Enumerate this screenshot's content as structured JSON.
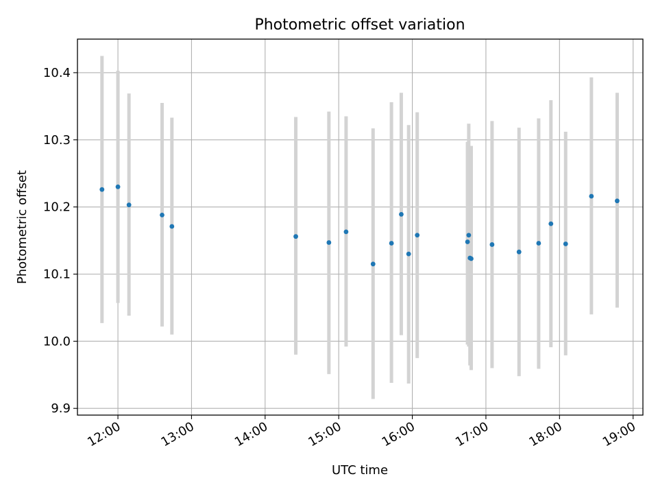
{
  "chart_data": {
    "type": "scatter",
    "title": "Photometric offset variation",
    "xlabel": "UTC time",
    "ylabel": "Photometric offset",
    "xlim": [
      "11:27",
      "19:08"
    ],
    "ylim": [
      9.89,
      10.45
    ],
    "xticks": [
      "12:00",
      "13:00",
      "14:00",
      "15:00",
      "16:00",
      "17:00",
      "18:00",
      "19:00"
    ],
    "yticks": [
      "9.9",
      "10.0",
      "10.1",
      "10.2",
      "10.3",
      "10.4"
    ],
    "grid": true,
    "colors": {
      "points": "#1f77b4",
      "errorbars": "#d3d3d3",
      "grid": "#b0b0b0"
    },
    "points": [
      {
        "x": "11:47",
        "y": 10.226,
        "y_low": 10.027,
        "y_high": 10.425
      },
      {
        "x": "12:00",
        "y": 10.23,
        "y_low": 10.057,
        "y_high": 10.403
      },
      {
        "x": "12:09",
        "y": 10.203,
        "y_low": 10.038,
        "y_high": 10.369
      },
      {
        "x": "12:36",
        "y": 10.188,
        "y_low": 10.022,
        "y_high": 10.355
      },
      {
        "x": "12:44",
        "y": 10.171,
        "y_low": 10.01,
        "y_high": 10.333
      },
      {
        "x": "14:25",
        "y": 10.156,
        "y_low": 9.98,
        "y_high": 10.334
      },
      {
        "x": "14:52",
        "y": 10.147,
        "y_low": 9.951,
        "y_high": 10.342
      },
      {
        "x": "15:06",
        "y": 10.163,
        "y_low": 9.992,
        "y_high": 10.335
      },
      {
        "x": "15:28",
        "y": 10.115,
        "y_low": 9.914,
        "y_high": 10.317
      },
      {
        "x": "15:43",
        "y": 10.146,
        "y_low": 9.938,
        "y_high": 10.356
      },
      {
        "x": "15:51",
        "y": 10.189,
        "y_low": 10.009,
        "y_high": 10.37
      },
      {
        "x": "15:57",
        "y": 10.13,
        "y_low": 9.937,
        "y_high": 10.322
      },
      {
        "x": "16:04",
        "y": 10.158,
        "y_low": 9.975,
        "y_high": 10.341
      },
      {
        "x": "16:45",
        "y": 10.148,
        "y_low": 9.995,
        "y_high": 10.297
      },
      {
        "x": "16:46",
        "y": 10.158,
        "y_low": 9.992,
        "y_high": 10.324
      },
      {
        "x": "16:47",
        "y": 10.124,
        "y_low": 9.964,
        "y_high": 10.286
      },
      {
        "x": "16:48",
        "y": 10.123,
        "y_low": 9.957,
        "y_high": 10.291
      },
      {
        "x": "17:05",
        "y": 10.144,
        "y_low": 9.96,
        "y_high": 10.328
      },
      {
        "x": "17:27",
        "y": 10.133,
        "y_low": 9.948,
        "y_high": 10.318
      },
      {
        "x": "17:43",
        "y": 10.146,
        "y_low": 9.959,
        "y_high": 10.332
      },
      {
        "x": "17:53",
        "y": 10.175,
        "y_low": 9.991,
        "y_high": 10.359
      },
      {
        "x": "18:05",
        "y": 10.145,
        "y_low": 9.979,
        "y_high": 10.312
      },
      {
        "x": "18:26",
        "y": 10.216,
        "y_low": 10.04,
        "y_high": 10.393
      },
      {
        "x": "18:47",
        "y": 10.209,
        "y_low": 10.05,
        "y_high": 10.37
      }
    ]
  }
}
